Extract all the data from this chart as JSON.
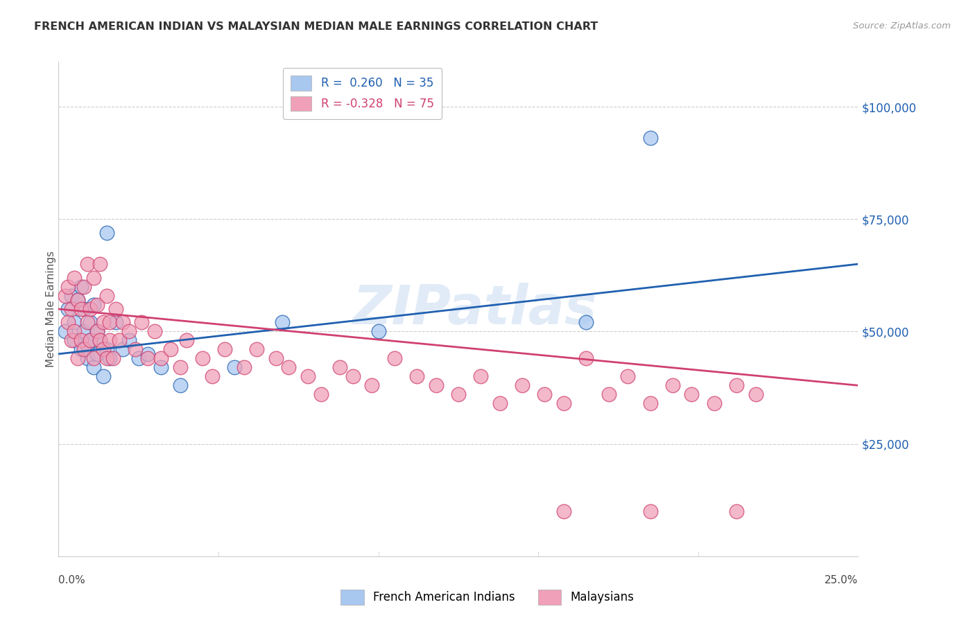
{
  "title": "FRENCH AMERICAN INDIAN VS MALAYSIAN MEDIAN MALE EARNINGS CORRELATION CHART",
  "source": "Source: ZipAtlas.com",
  "ylabel": "Median Male Earnings",
  "yticks": [
    0,
    25000,
    50000,
    75000,
    100000
  ],
  "ytick_labels": [
    "",
    "$25,000",
    "$50,000",
    "$75,000",
    "$100,000"
  ],
  "xlim": [
    0.0,
    0.25
  ],
  "ylim": [
    0,
    110000
  ],
  "watermark": "ZIPatlas",
  "color_blue": "#A8C8F0",
  "color_pink": "#F0A0B8",
  "line_color_blue": "#2060B0",
  "line_color_pink": "#D04070",
  "title_color": "#333333",
  "source_color": "#999999",
  "grid_color": "#CCCCCC",
  "blue_r": 0.26,
  "blue_n": 35,
  "pink_r": -0.328,
  "pink_n": 75,
  "blue_points_x": [
    0.002,
    0.003,
    0.004,
    0.005,
    0.005,
    0.006,
    0.007,
    0.007,
    0.008,
    0.008,
    0.009,
    0.009,
    0.01,
    0.01,
    0.011,
    0.011,
    0.012,
    0.012,
    0.013,
    0.014,
    0.015,
    0.015,
    0.016,
    0.018,
    0.02,
    0.022,
    0.025,
    0.028,
    0.032,
    0.038,
    0.055,
    0.07,
    0.1,
    0.165,
    0.185
  ],
  "blue_points_y": [
    50000,
    55000,
    58000,
    52000,
    48000,
    57000,
    46000,
    60000,
    55000,
    50000,
    47000,
    44000,
    52000,
    48000,
    56000,
    42000,
    50000,
    45000,
    48000,
    40000,
    46000,
    72000,
    44000,
    52000,
    46000,
    48000,
    44000,
    45000,
    42000,
    38000,
    42000,
    52000,
    50000,
    52000,
    93000
  ],
  "pink_points_x": [
    0.002,
    0.003,
    0.003,
    0.004,
    0.004,
    0.005,
    0.005,
    0.006,
    0.006,
    0.007,
    0.007,
    0.008,
    0.008,
    0.009,
    0.009,
    0.01,
    0.01,
    0.011,
    0.011,
    0.012,
    0.012,
    0.013,
    0.013,
    0.014,
    0.014,
    0.015,
    0.015,
    0.016,
    0.016,
    0.017,
    0.018,
    0.019,
    0.02,
    0.022,
    0.024,
    0.026,
    0.028,
    0.03,
    0.032,
    0.035,
    0.038,
    0.04,
    0.045,
    0.048,
    0.052,
    0.058,
    0.062,
    0.068,
    0.072,
    0.078,
    0.082,
    0.088,
    0.092,
    0.098,
    0.105,
    0.112,
    0.118,
    0.125,
    0.132,
    0.138,
    0.145,
    0.152,
    0.158,
    0.165,
    0.172,
    0.178,
    0.185,
    0.192,
    0.198,
    0.205,
    0.212,
    0.218,
    0.158,
    0.185,
    0.212
  ],
  "pink_points_y": [
    58000,
    52000,
    60000,
    55000,
    48000,
    62000,
    50000,
    57000,
    44000,
    55000,
    48000,
    60000,
    46000,
    52000,
    65000,
    55000,
    48000,
    62000,
    44000,
    56000,
    50000,
    48000,
    65000,
    52000,
    46000,
    58000,
    44000,
    52000,
    48000,
    44000,
    55000,
    48000,
    52000,
    50000,
    46000,
    52000,
    44000,
    50000,
    44000,
    46000,
    42000,
    48000,
    44000,
    40000,
    46000,
    42000,
    46000,
    44000,
    42000,
    40000,
    36000,
    42000,
    40000,
    38000,
    44000,
    40000,
    38000,
    36000,
    40000,
    34000,
    38000,
    36000,
    34000,
    44000,
    36000,
    40000,
    34000,
    38000,
    36000,
    34000,
    38000,
    36000,
    10000,
    10000,
    10000
  ]
}
